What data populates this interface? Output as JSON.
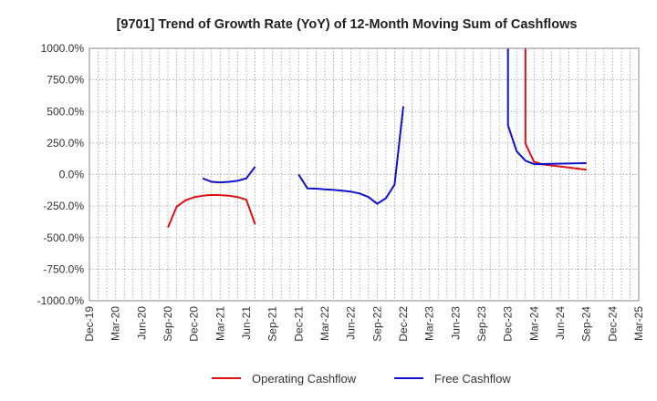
{
  "chart_data": {
    "type": "line",
    "title": "[9701]  Trend of Growth Rate (YoY) of 12-Month Moving Sum of Cashflows",
    "xlabel": "",
    "ylabel": "",
    "ylim": [
      -1000,
      1000
    ],
    "y_ticks": [
      1000,
      750,
      500,
      250,
      0,
      -250,
      -500,
      -750,
      -1000
    ],
    "y_tick_labels": [
      "1000.0%",
      "750.0%",
      "500.0%",
      "250.0%",
      "0.0%",
      "-250.0%",
      "-500.0%",
      "-750.0%",
      "-1000.0%"
    ],
    "x_tick_labels": [
      "Dec-19",
      "Mar-20",
      "Jun-20",
      "Sep-20",
      "Dec-20",
      "Mar-21",
      "Jun-21",
      "Sep-21",
      "Dec-21",
      "Mar-22",
      "Jun-22",
      "Sep-22",
      "Dec-22",
      "Mar-23",
      "Jun-23",
      "Sep-23",
      "Dec-23",
      "Mar-24",
      "Jun-24",
      "Sep-24",
      "Dec-24",
      "Mar-25"
    ],
    "x_range": [
      "2019-12",
      "2025-03"
    ],
    "grid": true,
    "legend_position": "bottom",
    "series": [
      {
        "name": "Operating Cashflow",
        "color": "#dd1111",
        "points": [
          [
            "2020-09",
            -420
          ],
          [
            "2020-10",
            -255
          ],
          [
            "2020-11",
            -205
          ],
          [
            "2020-12",
            -180
          ],
          [
            "2021-01",
            -168
          ],
          [
            "2021-02",
            -162
          ],
          [
            "2021-03",
            -163
          ],
          [
            "2021-04",
            -168
          ],
          [
            "2021-05",
            -178
          ],
          [
            "2021-06",
            -200
          ],
          [
            "2021-07",
            -395
          ]
        ],
        "segments": [
          [
            [
              "2020-09",
              -420
            ],
            [
              "2020-10",
              -255
            ],
            [
              "2020-11",
              -205
            ],
            [
              "2020-12",
              -180
            ],
            [
              "2021-01",
              -168
            ],
            [
              "2021-02",
              -162
            ],
            [
              "2021-03",
              -163
            ],
            [
              "2021-04",
              -168
            ],
            [
              "2021-05",
              -178
            ],
            [
              "2021-06",
              -200
            ],
            [
              "2021-07",
              -395
            ]
          ],
          [
            [
              "2024-02",
              1000
            ],
            [
              "2024-02",
              245
            ],
            [
              "2024-03",
              100
            ],
            [
              "2024-04",
              80
            ],
            [
              "2024-09",
              38
            ]
          ]
        ]
      },
      {
        "name": "Free Cashflow",
        "color": "#1111cc",
        "segments": [
          [
            [
              "2021-01",
              -30
            ],
            [
              "2021-02",
              -58
            ],
            [
              "2021-03",
              -62
            ],
            [
              "2021-04",
              -58
            ],
            [
              "2021-05",
              -50
            ],
            [
              "2021-06",
              -30
            ],
            [
              "2021-07",
              62
            ]
          ],
          [
            [
              "2021-12",
              0
            ],
            [
              "2022-01",
              -110
            ],
            [
              "2022-02",
              -112
            ],
            [
              "2022-03",
              -118
            ],
            [
              "2022-04",
              -122
            ],
            [
              "2022-05",
              -128
            ],
            [
              "2022-06",
              -136
            ],
            [
              "2022-07",
              -150
            ],
            [
              "2022-08",
              -178
            ],
            [
              "2022-09",
              -232
            ],
            [
              "2022-10",
              -188
            ],
            [
              "2022-11",
              -80
            ],
            [
              "2022-12",
              540
            ]
          ],
          [
            [
              "2023-12",
              1000
            ],
            [
              "2023-12",
              390
            ],
            [
              "2024-01",
              185
            ],
            [
              "2024-02",
              110
            ],
            [
              "2024-03",
              82
            ],
            [
              "2024-09",
              90
            ]
          ]
        ]
      }
    ]
  }
}
